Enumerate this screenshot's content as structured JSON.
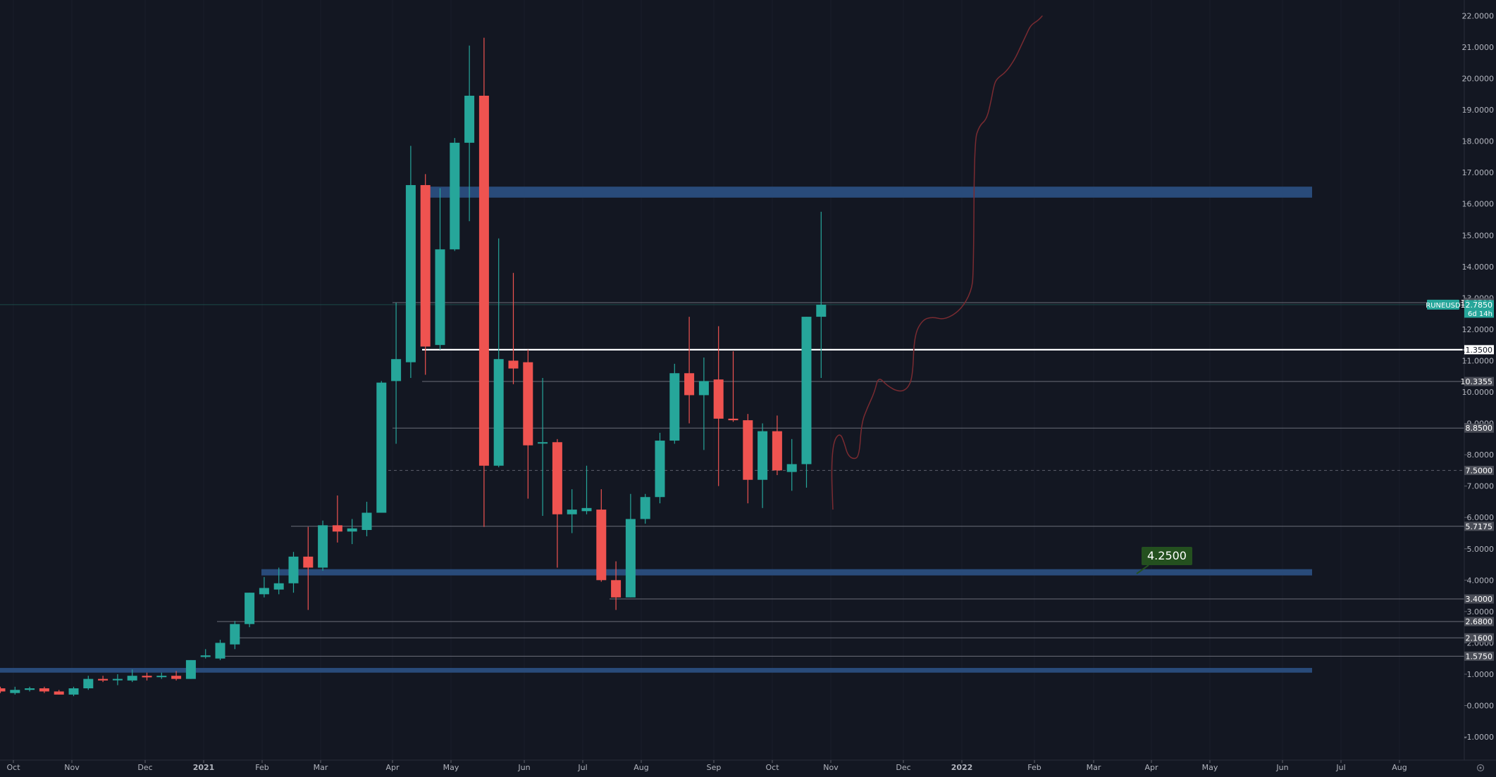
{
  "chart_data": {
    "type": "candlestick",
    "symbol": "RUNEUSD",
    "interval": "weekly",
    "ylim": [
      -1.5,
      22.4
    ],
    "x_tick_labels": [
      "Oct",
      "Nov",
      "Dec",
      "2021",
      "Feb",
      "Mar",
      "Apr",
      "May",
      "Jun",
      "Jul",
      "Aug",
      "Sep",
      "Oct",
      "Nov",
      "Dec",
      "2022",
      "Feb",
      "Mar",
      "Apr",
      "May",
      "Jun",
      "Jul",
      "Aug"
    ],
    "y_ticks": [
      -1.0,
      0.0,
      1.0,
      2.0,
      3.0,
      4.0,
      5.0,
      6.0,
      7.0,
      8.0,
      9.0,
      10.0,
      11.0,
      12.0,
      13.0,
      14.0,
      15.0,
      16.0,
      17.0,
      18.0,
      19.0,
      20.0,
      21.0,
      22.0
    ],
    "y_tick_labels": [
      "-1.0000",
      "0.0000",
      "1.0000",
      "2.0000",
      "3.0000",
      "4.0000",
      "5.0000",
      "6.0000",
      "7.0000",
      "8.0000",
      "9.0000",
      "10.0000",
      "11.0000",
      "12.0000",
      "13.0000",
      "14.0000",
      "15.0000",
      "16.0000",
      "17.0000",
      "18.0000",
      "19.0000",
      "20.0000",
      "21.0000",
      "22.0000"
    ],
    "candles": [
      {
        "o": 0.55,
        "h": 0.6,
        "l": 0.4,
        "c": 0.45
      },
      {
        "o": 0.4,
        "h": 0.6,
        "l": 0.35,
        "c": 0.5
      },
      {
        "o": 0.5,
        "h": 0.6,
        "l": 0.45,
        "c": 0.55
      },
      {
        "o": 0.55,
        "h": 0.6,
        "l": 0.4,
        "c": 0.45
      },
      {
        "o": 0.45,
        "h": 0.5,
        "l": 0.35,
        "c": 0.35
      },
      {
        "o": 0.35,
        "h": 0.6,
        "l": 0.3,
        "c": 0.55
      },
      {
        "o": 0.55,
        "h": 0.95,
        "l": 0.5,
        "c": 0.85
      },
      {
        "o": 0.85,
        "h": 0.95,
        "l": 0.75,
        "c": 0.8
      },
      {
        "o": 0.85,
        "h": 1.0,
        "l": 0.65,
        "c": 0.85
      },
      {
        "o": 0.8,
        "h": 1.15,
        "l": 0.75,
        "c": 0.95
      },
      {
        "o": 0.95,
        "h": 1.05,
        "l": 0.8,
        "c": 0.9
      },
      {
        "o": 0.95,
        "h": 1.05,
        "l": 0.85,
        "c": 0.95
      },
      {
        "o": 0.95,
        "h": 1.1,
        "l": 0.8,
        "c": 0.85
      },
      {
        "o": 0.85,
        "h": 1.45,
        "l": 0.85,
        "c": 1.45
      },
      {
        "o": 1.55,
        "h": 1.8,
        "l": 1.5,
        "c": 1.6
      },
      {
        "o": 1.5,
        "h": 2.1,
        "l": 1.45,
        "c": 2.0
      },
      {
        "o": 1.95,
        "h": 2.7,
        "l": 1.8,
        "c": 2.6
      },
      {
        "o": 2.6,
        "h": 3.6,
        "l": 2.5,
        "c": 3.6
      },
      {
        "o": 3.55,
        "h": 4.1,
        "l": 3.45,
        "c": 3.75
      },
      {
        "o": 3.7,
        "h": 4.4,
        "l": 3.55,
        "c": 3.9
      },
      {
        "o": 3.9,
        "h": 4.9,
        "l": 3.6,
        "c": 4.75
      },
      {
        "o": 4.75,
        "h": 5.7,
        "l": 3.05,
        "c": 4.4
      },
      {
        "o": 4.4,
        "h": 5.9,
        "l": 4.3,
        "c": 5.75
      },
      {
        "o": 5.75,
        "h": 6.7,
        "l": 5.2,
        "c": 5.55
      },
      {
        "o": 5.55,
        "h": 5.95,
        "l": 5.15,
        "c": 5.65
      },
      {
        "o": 5.6,
        "h": 6.5,
        "l": 5.4,
        "c": 6.15
      },
      {
        "o": 6.15,
        "h": 10.35,
        "l": 6.15,
        "c": 10.3
      },
      {
        "o": 10.35,
        "h": 12.85,
        "l": 8.35,
        "c": 11.05
      },
      {
        "o": 10.95,
        "h": 17.85,
        "l": 10.45,
        "c": 16.6
      },
      {
        "o": 16.6,
        "h": 16.95,
        "l": 10.55,
        "c": 11.45
      },
      {
        "o": 11.5,
        "h": 16.5,
        "l": 11.35,
        "c": 14.55
      },
      {
        "o": 14.55,
        "h": 18.1,
        "l": 14.5,
        "c": 17.95
      },
      {
        "o": 17.95,
        "h": 21.05,
        "l": 15.45,
        "c": 19.45
      },
      {
        "o": 19.45,
        "h": 21.3,
        "l": 5.7,
        "c": 7.65
      },
      {
        "o": 7.65,
        "h": 14.9,
        "l": 7.6,
        "c": 11.05
      },
      {
        "o": 11.0,
        "h": 13.8,
        "l": 10.25,
        "c": 10.75
      },
      {
        "o": 10.95,
        "h": 11.35,
        "l": 6.6,
        "c": 8.3
      },
      {
        "o": 8.4,
        "h": 10.45,
        "l": 6.05,
        "c": 8.4
      },
      {
        "o": 8.4,
        "h": 8.5,
        "l": 4.4,
        "c": 6.1
      },
      {
        "o": 6.1,
        "h": 6.9,
        "l": 5.5,
        "c": 6.25
      },
      {
        "o": 6.2,
        "h": 7.65,
        "l": 6.1,
        "c": 6.3
      },
      {
        "o": 6.25,
        "h": 6.9,
        "l": 3.95,
        "c": 4.0
      },
      {
        "o": 4.0,
        "h": 4.6,
        "l": 3.05,
        "c": 3.45
      },
      {
        "o": 3.45,
        "h": 6.75,
        "l": 3.45,
        "c": 5.95
      },
      {
        "o": 5.95,
        "h": 6.75,
        "l": 5.8,
        "c": 6.65
      },
      {
        "o": 6.65,
        "h": 8.7,
        "l": 6.45,
        "c": 8.45
      },
      {
        "o": 8.45,
        "h": 10.9,
        "l": 8.35,
        "c": 10.6
      },
      {
        "o": 10.6,
        "h": 12.4,
        "l": 9.0,
        "c": 9.9
      },
      {
        "o": 9.9,
        "h": 11.1,
        "l": 8.15,
        "c": 10.35
      },
      {
        "o": 10.4,
        "h": 12.1,
        "l": 7.0,
        "c": 9.15
      },
      {
        "o": 9.15,
        "h": 11.3,
        "l": 9.05,
        "c": 9.1
      },
      {
        "o": 9.1,
        "h": 9.3,
        "l": 6.45,
        "c": 7.2
      },
      {
        "o": 7.2,
        "h": 9.0,
        "l": 6.3,
        "c": 8.75
      },
      {
        "o": 8.75,
        "h": 9.25,
        "l": 7.35,
        "c": 7.5
      },
      {
        "o": 7.45,
        "h": 8.5,
        "l": 6.85,
        "c": 7.7
      },
      {
        "o": 7.7,
        "h": 12.4,
        "l": 6.95,
        "c": 12.4
      },
      {
        "o": 12.4,
        "h": 15.75,
        "l": 10.45,
        "c": 12.785
      }
    ],
    "zones": [
      {
        "low": 16.2,
        "high": 16.55,
        "color": "#2a4e80"
      },
      {
        "low": 4.15,
        "high": 4.35,
        "color": "#2a4e80"
      },
      {
        "low": 1.05,
        "high": 1.2,
        "color": "#2a4e80"
      }
    ],
    "levels": [
      {
        "value": 12.85,
        "label": "12.8500"
      },
      {
        "value": 11.35,
        "label": "11.3500"
      },
      {
        "value": 10.3355,
        "label": "10.3355"
      },
      {
        "value": 8.85,
        "label": "8.8500"
      },
      {
        "value": 7.5,
        "label": "7.5000"
      },
      {
        "value": 5.7175,
        "label": "5.7175"
      },
      {
        "value": 3.4,
        "label": "3.4000"
      },
      {
        "value": 2.68,
        "label": "2.6800"
      },
      {
        "value": 2.16,
        "label": "2.1600"
      },
      {
        "value": 1.575,
        "label": "1.5750"
      }
    ],
    "current_price": {
      "symbol": "RUNEUSD",
      "value": 12.785,
      "label": "12.7850",
      "countdown": "6d 14h"
    },
    "annotation": {
      "label": "4.2500",
      "value": 4.25
    },
    "projection_path": [
      [
        56.8,
        6.25
      ],
      [
        56.7,
        7.6
      ],
      [
        56.85,
        8.45
      ],
      [
        57.3,
        8.7
      ],
      [
        57.6,
        8.35
      ],
      [
        57.8,
        8.0
      ],
      [
        58.2,
        7.85
      ],
      [
        58.6,
        7.95
      ],
      [
        58.75,
        9.0
      ],
      [
        59.15,
        9.5
      ],
      [
        59.65,
        10.0
      ],
      [
        59.9,
        10.5
      ],
      [
        60.5,
        10.2
      ],
      [
        61.3,
        10.0
      ],
      [
        61.9,
        10.1
      ],
      [
        62.25,
        10.5
      ],
      [
        62.35,
        11.8
      ],
      [
        62.9,
        12.3
      ],
      [
        63.6,
        12.4
      ],
      [
        64.4,
        12.3
      ],
      [
        65.5,
        12.6
      ],
      [
        66.25,
        13.2
      ],
      [
        66.4,
        13.8
      ],
      [
        66.45,
        18.0
      ],
      [
        66.8,
        18.5
      ],
      [
        67.3,
        18.7
      ],
      [
        67.6,
        19.3
      ],
      [
        67.8,
        19.8
      ],
      [
        68.0,
        20.0
      ],
      [
        68.6,
        20.2
      ],
      [
        69.2,
        20.6
      ],
      [
        69.6,
        21.0
      ],
      [
        70.0,
        21.4
      ],
      [
        70.3,
        21.7
      ],
      [
        70.8,
        21.85
      ],
      [
        71.1,
        22.0
      ]
    ],
    "colors": {
      "up": "#26a69a",
      "down": "#ef5350",
      "background": "#131722",
      "axis_text": "#b2b5be",
      "projection": "#7a2b31",
      "annotation_bg": "#24501f"
    }
  }
}
